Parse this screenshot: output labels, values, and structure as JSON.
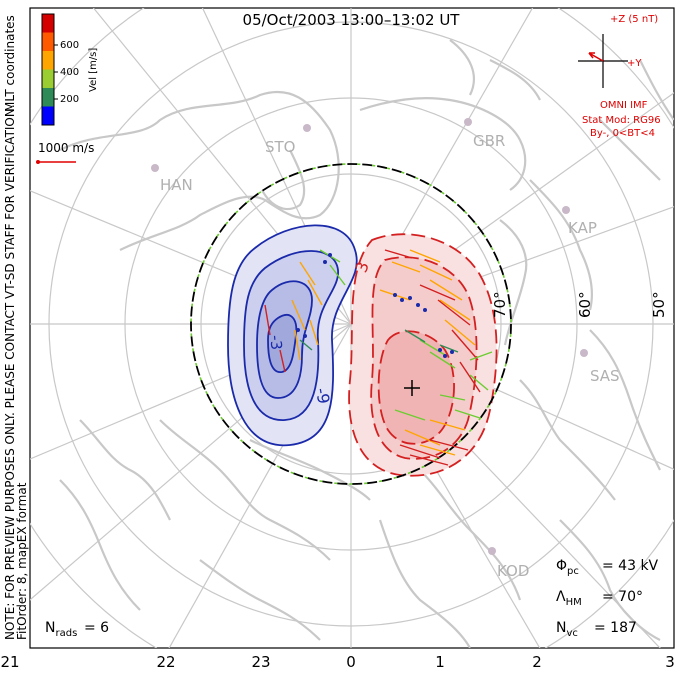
{
  "title": "05/Oct/2003 13:00–13:02 UT",
  "imf": {
    "axis_z": "+Z (5 nT)",
    "axis_y": "+Y",
    "source": "OMNI IMF",
    "model": "Stat Mod: RG96",
    "condition": "By-, 0<BT<4"
  },
  "legend": {
    "title": "Vel [m/s]",
    "ticks": [
      "600",
      "400",
      "200"
    ],
    "colors": [
      "#d40000",
      "#ff5a00",
      "#ffa500",
      "#9acd32",
      "#2e8b57",
      "#0000ff"
    ],
    "scale_label": "1000 m/s"
  },
  "coords_label": "MLT coordinates",
  "notice": "NOTE: FOR PREVIEW PURPOSES ONLY. PLEASE CONTACT VT-SD STAFF FOR VERIFICATION.",
  "fit_info": "FitOrder: 8, mapEX format",
  "stations": [
    "STO",
    "GBR",
    "HAN",
    "KAP",
    "SAS",
    "KOD"
  ],
  "latitudes": [
    "70°",
    "60°",
    "50°"
  ],
  "mlt_ticks": [
    "21",
    "22",
    "23",
    "0",
    "1",
    "2",
    "3"
  ],
  "contour_labels": [
    "-3",
    "-9",
    "3"
  ],
  "stats": {
    "n_rads": "N",
    "n_rads_sub": "rads",
    "n_rads_value": "= 6",
    "phi": "Φ",
    "phi_sub": "pc",
    "phi_value": "= 43 kV",
    "lambda": "Λ",
    "lambda_sub": "HM",
    "lambda_value": "= 70°",
    "nvc": "N",
    "nvc_sub": "vc",
    "nvc_value": "= 187"
  }
}
